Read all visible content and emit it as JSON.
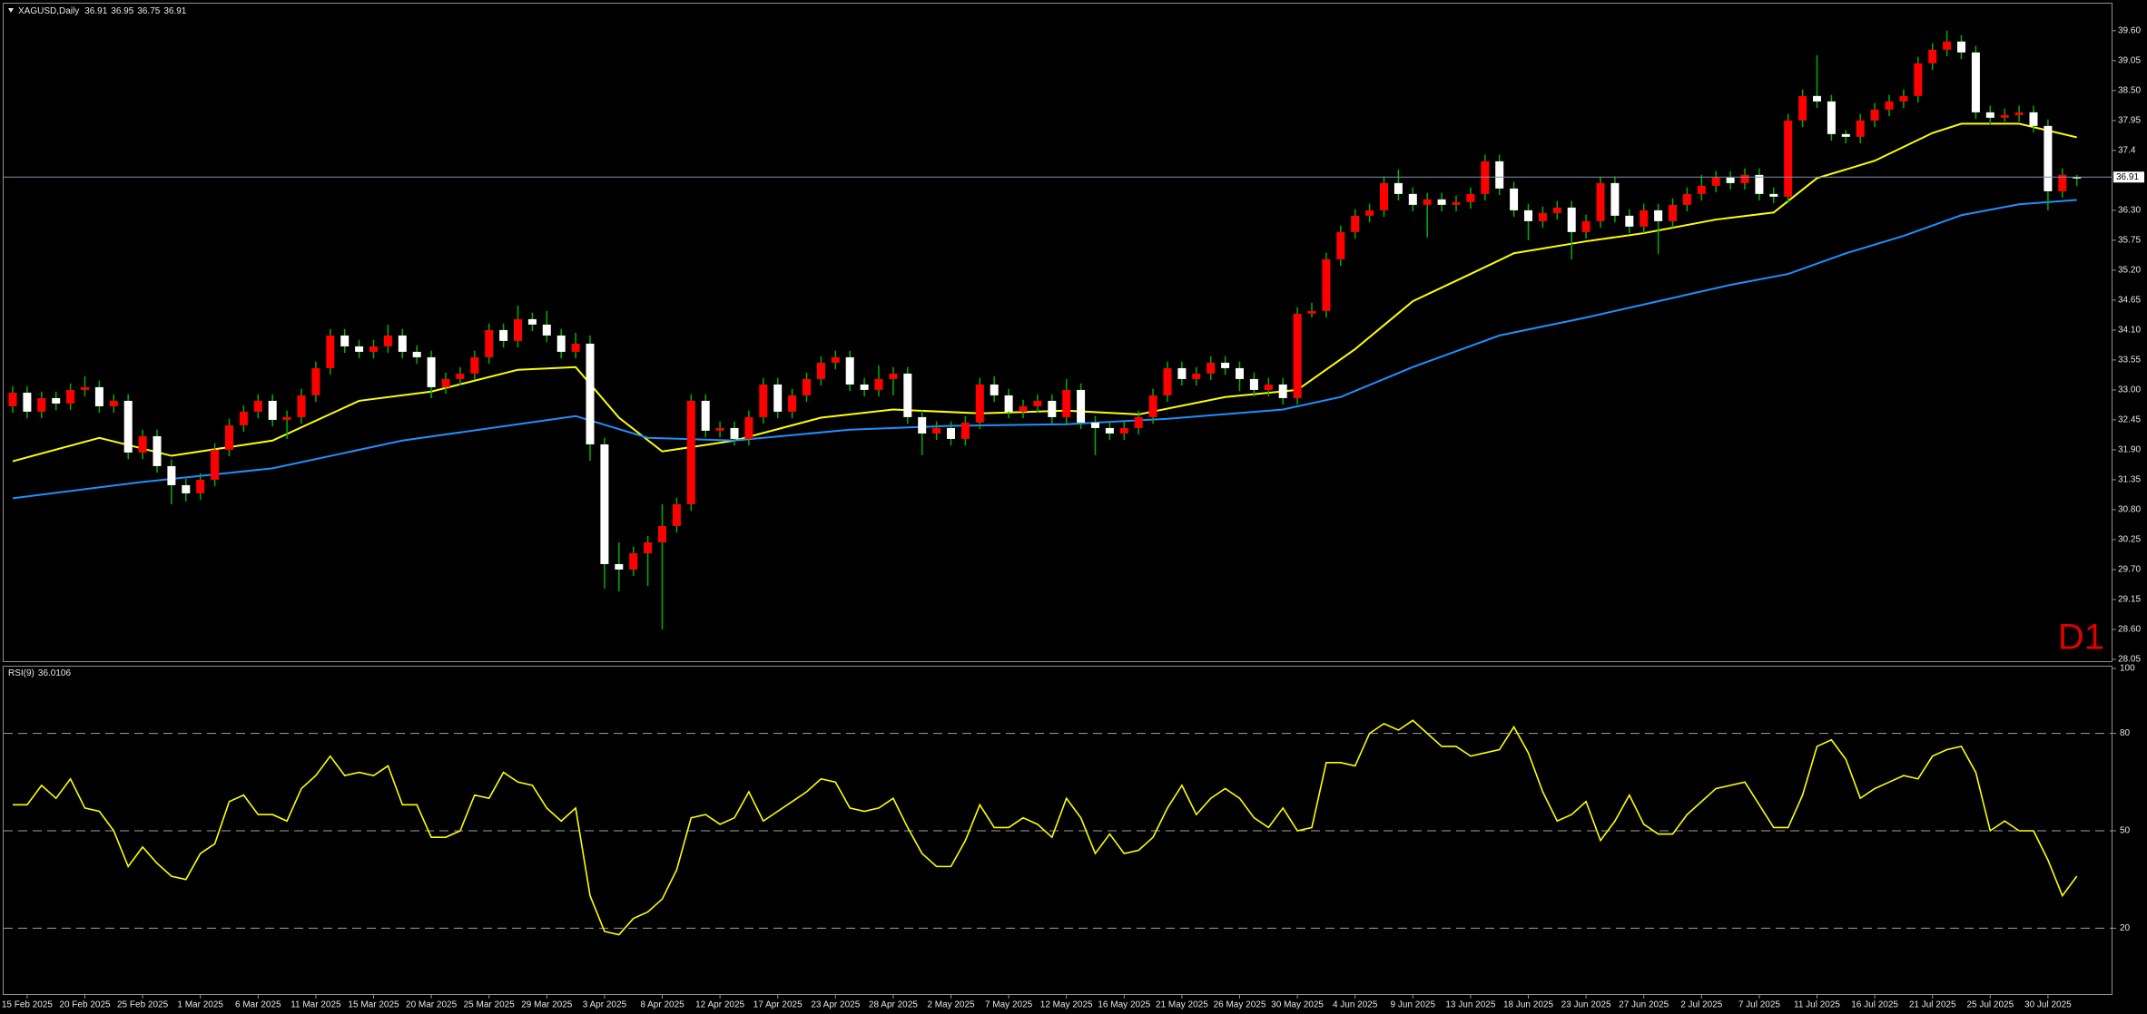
{
  "chart_data": [
    {
      "type": "candlestick",
      "title": "XAGUSD,Daily",
      "timeframe": "D1",
      "up_color": "#ff0000",
      "down_color": "#ffffff",
      "wick_color": "#00b000",
      "price_line_color": "#8090a8",
      "timeframe_color": "#e00000",
      "ylim": [
        28.0,
        40.08
      ],
      "yticks": [
        {
          "value": 39.6,
          "label": "39.60"
        },
        39.05,
        {
          "value": 38.5,
          "label": "38.50"
        },
        37.95,
        37.4,
        {
          "value": 36.3,
          "label": "36.30"
        },
        35.75,
        {
          "value": 35.2,
          "label": "35.20"
        },
        34.65,
        {
          "value": 34.1,
          "label": "34.10"
        },
        33.55,
        {
          "value": 33.0,
          "label": "33.00"
        },
        32.45,
        {
          "value": 31.9,
          "label": "31.90"
        },
        31.35,
        {
          "value": 30.8,
          "label": "30.80"
        },
        30.25,
        {
          "value": 29.7,
          "label": "29.70"
        },
        29.15,
        {
          "value": 28.6,
          "label": "28.60"
        },
        28.05
      ],
      "categories": [
        null,
        "15 Feb 2025",
        null,
        null,
        null,
        "20 Feb 2025",
        null,
        null,
        null,
        "25 Feb 2025",
        null,
        null,
        null,
        "1 Mar 2025",
        null,
        null,
        null,
        "6 Mar 2025",
        null,
        null,
        null,
        "11 Mar 2025",
        null,
        null,
        null,
        "15 Mar 2025",
        null,
        null,
        null,
        "20 Mar 2025",
        null,
        null,
        null,
        "25 Mar 2025",
        null,
        null,
        null,
        "29 Mar 2025",
        null,
        null,
        null,
        "3 Apr 2025",
        null,
        null,
        null,
        "8 Apr 2025",
        null,
        null,
        null,
        "12 Apr 2025",
        null,
        null,
        null,
        "17 Apr 2025",
        null,
        null,
        null,
        "23 Apr 2025",
        null,
        null,
        null,
        "28 Apr 2025",
        null,
        null,
        null,
        "2 May 2025",
        null,
        null,
        null,
        "7 May 2025",
        null,
        null,
        null,
        "12 May 2025",
        null,
        null,
        null,
        "16 May 2025",
        null,
        null,
        null,
        "21 May 2025",
        null,
        null,
        null,
        "26 May 2025",
        null,
        null,
        null,
        "30 May 2025",
        null,
        null,
        null,
        "4 Jun 2025",
        null,
        null,
        null,
        "9 Jun 2025",
        null,
        null,
        null,
        "13 Jun 2025",
        null,
        null,
        null,
        "18 Jun 2025",
        null,
        null,
        null,
        "23 Jun 2025",
        null,
        null,
        null,
        "27 Jun 2025",
        null,
        null,
        null,
        "2 Jul 2025",
        null,
        null,
        null,
        "7 Jul 2025",
        null,
        null,
        null,
        "11 Jul 2025",
        null,
        null,
        null,
        "16 Jul 2025",
        null,
        null,
        null,
        "21 Jul 2025",
        null,
        null,
        null,
        "25 Jul 2025",
        null,
        null,
        null,
        "30 Jul 2025",
        null,
        null
      ],
      "open": [
        32.7,
        32.95,
        32.6,
        32.85,
        32.75,
        33,
        33.05,
        32.7,
        32.8,
        31.85,
        32.15,
        31.6,
        31.25,
        31.1,
        31.35,
        31.9,
        32.35,
        32.6,
        32.8,
        32.45,
        32.5,
        32.9,
        33.4,
        34,
        33.8,
        33.7,
        33.8,
        34,
        33.7,
        33.6,
        33.05,
        33.2,
        33.3,
        33.6,
        34.1,
        33.9,
        34.3,
        34.2,
        34,
        33.7,
        33.85,
        32,
        29.8,
        29.7,
        30,
        30.2,
        30.5,
        30.9,
        32.8,
        32.25,
        32.3,
        32.1,
        32.5,
        33.1,
        32.6,
        32.9,
        33.2,
        33.5,
        33.6,
        33.1,
        33,
        33.2,
        33.3,
        32.5,
        32.2,
        32.3,
        32.1,
        32.4,
        33.1,
        32.9,
        32.6,
        32.7,
        32.8,
        32.5,
        33,
        32.4,
        32.3,
        32.2,
        32.3,
        32.5,
        32.9,
        33.4,
        33.2,
        33.3,
        33.5,
        33.4,
        33.2,
        33,
        33.1,
        32.85,
        34.4,
        34.45,
        35.4,
        35.9,
        36.2,
        36.3,
        36.8,
        36.6,
        36.4,
        36.5,
        36.4,
        36.45,
        36.6,
        37.2,
        36.7,
        36.3,
        36.1,
        36.25,
        36.35,
        35.9,
        36.1,
        36.8,
        36.2,
        36,
        36.3,
        36.1,
        36.4,
        36.6,
        36.75,
        36.9,
        36.8,
        36.95,
        36.6,
        36.55,
        37.95,
        38.4,
        38.3,
        37.7,
        37.65,
        37.95,
        38.15,
        38.3,
        38.4,
        39,
        39.25,
        39.4,
        39.2,
        38.1,
        38,
        38.05,
        38.1,
        37.85,
        36.65,
        36.91
      ],
      "high": [
        33.07,
        33.07,
        32.97,
        32.97,
        33.12,
        33.25,
        33.17,
        32.92,
        32.92,
        32.27,
        32.27,
        31.72,
        31.37,
        31.47,
        32.02,
        32.47,
        32.72,
        32.92,
        32.92,
        32.62,
        33.02,
        33.52,
        34.12,
        34.12,
        33.92,
        33.92,
        34.2,
        34.12,
        33.82,
        33.72,
        33.32,
        33.42,
        33.72,
        34.22,
        34.22,
        34.55,
        34.42,
        34.45,
        34.12,
        34.05,
        34,
        32.12,
        30.2,
        30.12,
        30.32,
        30.9,
        31.02,
        32.92,
        32.92,
        32.42,
        32.42,
        32.62,
        33.22,
        33.22,
        33.02,
        33.32,
        33.62,
        33.72,
        33.72,
        33.22,
        33.45,
        33.42,
        33.42,
        32.62,
        32.42,
        32.42,
        32.52,
        33.22,
        33.25,
        33.02,
        32.82,
        32.92,
        32.92,
        33.2,
        33.12,
        32.52,
        32.42,
        32.42,
        32.62,
        33.02,
        33.52,
        33.52,
        33.42,
        33.62,
        33.62,
        33.52,
        33.32,
        33.22,
        33.22,
        34.52,
        34.6,
        35.52,
        36.02,
        36.32,
        36.42,
        36.92,
        37.05,
        36.72,
        36.62,
        36.62,
        36.57,
        36.72,
        37.32,
        37.32,
        36.82,
        36.42,
        36.37,
        36.47,
        36.47,
        36.22,
        36.92,
        36.92,
        36.32,
        36.42,
        36.42,
        36.52,
        36.72,
        36.95,
        37.02,
        37.02,
        37.07,
        37.07,
        36.72,
        38.07,
        38.52,
        39.15,
        38.42,
        37.77,
        38.07,
        38.27,
        38.42,
        38.52,
        39.12,
        39.37,
        39.6,
        39.52,
        39.32,
        38.22,
        38.17,
        38.22,
        38.22,
        37.97,
        37.07,
        36.95
      ],
      "low": [
        32.58,
        32.48,
        32.48,
        32.63,
        32.63,
        32.88,
        32.58,
        32.58,
        31.73,
        31.73,
        31.48,
        30.9,
        30.95,
        30.98,
        31.23,
        31.78,
        32.23,
        32.48,
        32.33,
        32.1,
        32.38,
        32.78,
        33.28,
        33.68,
        33.58,
        33.58,
        33.68,
        33.58,
        33.48,
        32.85,
        32.93,
        33.08,
        33.18,
        33.48,
        33.78,
        33.78,
        34.08,
        33.88,
        33.58,
        33.58,
        31.7,
        29.35,
        29.3,
        29.58,
        29.4,
        28.6,
        30.38,
        30.78,
        32.13,
        32.13,
        31.98,
        31.98,
        32.38,
        32.48,
        32.48,
        32.78,
        33.08,
        33.38,
        32.98,
        32.88,
        32.88,
        32.9,
        32.38,
        31.8,
        32.08,
        31.98,
        31.98,
        32.28,
        32.78,
        32.48,
        32.48,
        32.58,
        32.38,
        32.38,
        32.28,
        31.8,
        32.08,
        32.08,
        32.18,
        32.38,
        32.78,
        33.08,
        33.08,
        33.18,
        33.28,
        32.98,
        32.88,
        32.88,
        32.73,
        32.73,
        34.33,
        34.33,
        35.28,
        35.78,
        36.08,
        36.18,
        36.48,
        36.28,
        35.8,
        36.28,
        36.28,
        36.33,
        36.48,
        36.58,
        36.18,
        35.75,
        35.98,
        36.13,
        35.4,
        35.78,
        35.98,
        36.08,
        35.88,
        35.88,
        35.5,
        35.98,
        36.28,
        36.48,
        36.63,
        36.68,
        36.68,
        36.48,
        36.43,
        36.43,
        37.83,
        38.18,
        37.58,
        37.53,
        37.53,
        37.83,
        38.03,
        38.18,
        38.28,
        38.88,
        39.13,
        39.08,
        37.98,
        37.88,
        37.93,
        37.93,
        37.73,
        36.3,
        36.53,
        36.75
      ],
      "close": [
        32.95,
        32.6,
        32.85,
        32.75,
        33,
        33.05,
        32.7,
        32.8,
        31.85,
        32.15,
        31.6,
        31.25,
        31.1,
        31.35,
        31.9,
        32.35,
        32.6,
        32.8,
        32.45,
        32.5,
        32.9,
        33.4,
        34,
        33.8,
        33.7,
        33.8,
        34,
        33.7,
        33.6,
        33.05,
        33.2,
        33.3,
        33.6,
        34.1,
        33.9,
        34.3,
        34.2,
        34,
        33.7,
        33.85,
        32,
        29.8,
        29.7,
        30,
        30.2,
        30.5,
        30.9,
        32.8,
        32.25,
        32.3,
        32.1,
        32.5,
        33.1,
        32.6,
        32.9,
        33.2,
        33.5,
        33.6,
        33.1,
        33,
        33.2,
        33.3,
        32.5,
        32.2,
        32.3,
        32.1,
        32.4,
        33.1,
        32.9,
        32.6,
        32.7,
        32.8,
        32.5,
        33,
        32.4,
        32.3,
        32.2,
        32.3,
        32.5,
        32.9,
        33.4,
        33.2,
        33.3,
        33.5,
        33.4,
        33.2,
        33,
        33.1,
        32.85,
        34.4,
        34.45,
        35.4,
        35.9,
        36.2,
        36.3,
        36.8,
        36.6,
        36.4,
        36.5,
        36.4,
        36.45,
        36.6,
        37.2,
        36.7,
        36.3,
        36.1,
        36.25,
        36.35,
        35.9,
        36.1,
        36.8,
        36.2,
        36,
        36.3,
        36.1,
        36.4,
        36.6,
        36.75,
        36.9,
        36.8,
        36.95,
        36.6,
        36.55,
        37.95,
        38.4,
        38.3,
        37.7,
        37.65,
        37.95,
        38.15,
        38.3,
        38.4,
        39,
        39.25,
        39.4,
        39.2,
        38.1,
        38,
        38.05,
        38.1,
        37.85,
        36.65,
        36.95,
        36.91
      ],
      "series": [
        {
          "color": "#ffff00",
          "x": [
            0,
            6,
            11,
            18,
            24,
            29,
            35,
            39,
            42,
            45,
            50,
            56,
            61,
            67,
            73,
            78,
            84,
            89,
            93,
            97,
            101,
            104,
            109,
            113,
            118,
            122,
            125,
            129,
            133,
            135,
            139,
            143
          ],
          "values": [
            31.69,
            32.12,
            31.79,
            32.07,
            32.8,
            32.97,
            33.37,
            33.42,
            32.49,
            31.87,
            32.07,
            32.49,
            32.64,
            32.57,
            32.62,
            32.55,
            32.87,
            33.0,
            33.75,
            34.63,
            35.13,
            35.51,
            35.73,
            35.88,
            36.13,
            36.26,
            36.89,
            37.21,
            37.72,
            37.89,
            37.89,
            37.64
          ]
        },
        {
          "color": "#1e90ff",
          "x": [
            0,
            9,
            18,
            27,
            35,
            39,
            44,
            50,
            58,
            65,
            73,
            80,
            88,
            92,
            97,
            103,
            109,
            114,
            119,
            123,
            127,
            131,
            135,
            139,
            143
          ],
          "values": [
            31.01,
            31.31,
            31.56,
            32.07,
            32.37,
            32.52,
            32.12,
            32.07,
            32.27,
            32.34,
            32.37,
            32.47,
            32.64,
            32.87,
            33.42,
            34.0,
            34.33,
            34.63,
            34.93,
            35.13,
            35.51,
            35.83,
            36.21,
            36.41,
            36.49
          ]
        }
      ]
    },
    {
      "type": "line",
      "title": "RSI(9)",
      "color": "#ffff00",
      "ylim": [
        0,
        100
      ],
      "yticks": [
        20,
        50,
        80,
        100
      ],
      "values": [
        58,
        58,
        64,
        60,
        66,
        57,
        56,
        50,
        39,
        45,
        40,
        36,
        35,
        43,
        46,
        59,
        61,
        55,
        55,
        53,
        63,
        67,
        73,
        67,
        68,
        67,
        70,
        58,
        58,
        48,
        48,
        50,
        61,
        60,
        68,
        65,
        64,
        57,
        53,
        57,
        30,
        19,
        18,
        23,
        25,
        29,
        38,
        54,
        55,
        52,
        54,
        62,
        53,
        56,
        59,
        62,
        66,
        65,
        57,
        56,
        57,
        60,
        51,
        43,
        39,
        39,
        47,
        58,
        51,
        51,
        54,
        52,
        48,
        60,
        54,
        43,
        49,
        43,
        44,
        48,
        57,
        64,
        55,
        60,
        63,
        60,
        54,
        51,
        57,
        50,
        51,
        71,
        71,
        70,
        80,
        83,
        81,
        84,
        80,
        76,
        76,
        73,
        74,
        75,
        82,
        74,
        62,
        53,
        55,
        59,
        47,
        53,
        61,
        52,
        49,
        49,
        55,
        59,
        63,
        64,
        65,
        58,
        51,
        51,
        61,
        76,
        78,
        72,
        60,
        63,
        65,
        67,
        66,
        73,
        75,
        76,
        68,
        50,
        53,
        50,
        50,
        41,
        30,
        36.0106
      ]
    }
  ]
}
